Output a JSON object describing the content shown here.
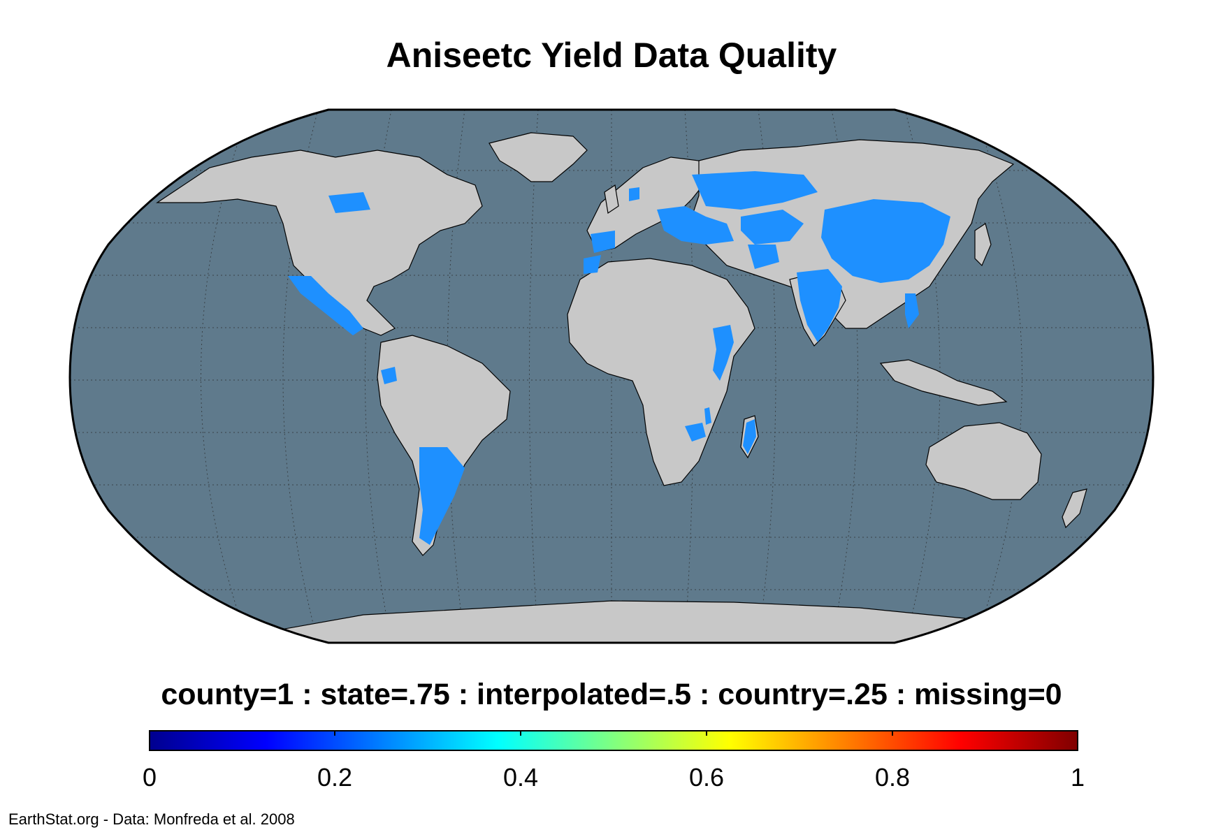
{
  "title": "Aniseetc Yield Data Quality",
  "subtitle": "county=1 : state=.75 : interpolated=.5 : country=.25 : missing=0",
  "credit": "EarthStat.org - Data: Monfreda et al. 2008",
  "colorbar": {
    "colormap": "jet",
    "min": 0,
    "max": 1,
    "ticks": [
      "0",
      "0.2",
      "0.4",
      "0.6",
      "0.8",
      "1"
    ]
  },
  "colors": {
    "ocean": "#5f7a8c",
    "land": "#c8c8c8",
    "data_value_0_25": "#1e90ff",
    "border": "#000000"
  },
  "map": {
    "projection": "Robinson",
    "highlighted_regions": [
      "Canada (Prairies)",
      "Mexico",
      "Central America",
      "Ecuador",
      "Argentina",
      "Spain",
      "Morocco",
      "Netherlands",
      "Balkans",
      "Turkey",
      "Russia",
      "Central Asia",
      "Iran",
      "India",
      "China",
      "Vietnam",
      "Ethiopia",
      "Kenya",
      "Zimbabwe",
      "Madagascar",
      "Malawi"
    ]
  }
}
